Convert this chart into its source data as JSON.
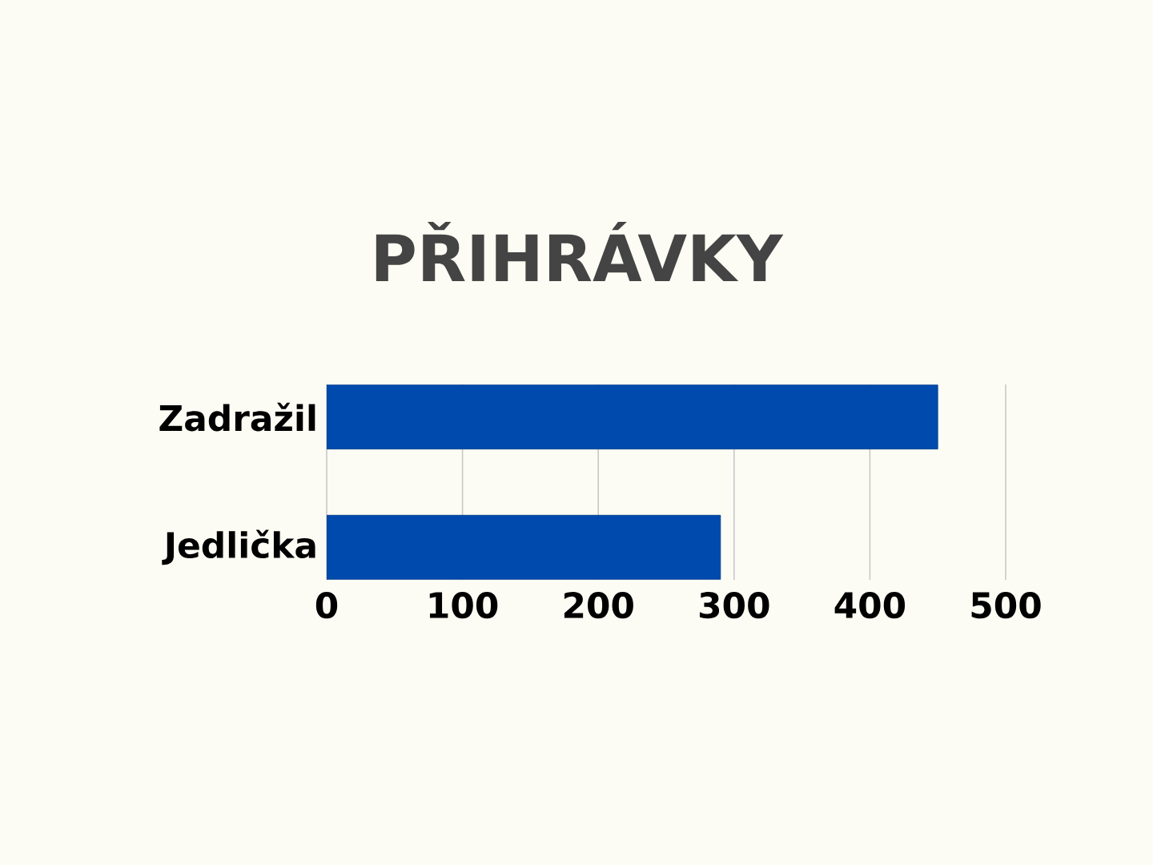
{
  "chart_data": {
    "type": "bar",
    "orientation": "horizontal",
    "title": "PŘIHRÁVKY",
    "categories": [
      "Zadražil",
      "Jedlička"
    ],
    "values": [
      450,
      290
    ],
    "color": "#004aad",
    "xlim": [
      0,
      500
    ],
    "xticks": [
      0,
      100,
      200,
      300,
      400,
      500
    ],
    "grid": "x"
  }
}
